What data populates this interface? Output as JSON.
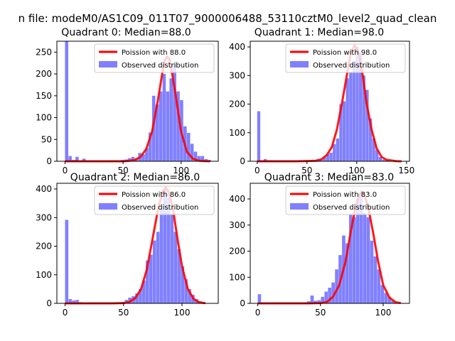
{
  "figure": {
    "suptitle": "n file: modeM0/AS1C09_011T07_9000006488_53110cztM0_level2_quad_clean"
  },
  "chart_data": [
    {
      "type": "bar",
      "title": "Quadrant 0: Median=88.0",
      "xlabel": "",
      "ylabel": "",
      "xlim": [
        -7,
        132
      ],
      "ylim": [
        0,
        275
      ],
      "xticks": [
        0,
        50,
        100
      ],
      "yticks": [
        0,
        50,
        100,
        150,
        200,
        250
      ],
      "legend": {
        "position": "top-right",
        "entries": [
          "Poission with 88.0",
          "Observed distribution"
        ]
      },
      "series": [
        {
          "name": "Observed distribution",
          "kind": "histogram",
          "color": "#8080ff",
          "bin_width": 3.0,
          "bin_starts": [
            0,
            3,
            6,
            9,
            12,
            15,
            18,
            21,
            24,
            27,
            30,
            33,
            36,
            39,
            42,
            45,
            48,
            51,
            54,
            57,
            60,
            63,
            66,
            69,
            72,
            75,
            78,
            81,
            84,
            87,
            90,
            93,
            96,
            99,
            102,
            105,
            108,
            111,
            114,
            117,
            120,
            123
          ],
          "values": [
            275,
            12,
            3,
            10,
            2,
            6,
            0,
            0,
            0,
            0,
            0,
            0,
            1,
            2,
            1,
            1,
            3,
            4,
            7,
            10,
            7,
            19,
            16,
            30,
            66,
            150,
            130,
            160,
            200,
            160,
            190,
            225,
            160,
            140,
            80,
            65,
            40,
            22,
            12,
            12,
            5,
            3
          ]
        },
        {
          "name": "Poission with 88.0",
          "kind": "line",
          "color": "#ff0000",
          "x": [
            0,
            10,
            20,
            30,
            40,
            50,
            55,
            60,
            65,
            70,
            75,
            80,
            84,
            86,
            88,
            90,
            92,
            96,
            100,
            105,
            110,
            115,
            120,
            125
          ],
          "y": [
            0,
            0,
            0,
            0,
            0,
            0,
            1,
            3,
            10,
            28,
            68,
            140,
            205,
            232,
            240,
            232,
            205,
            140,
            68,
            22,
            6,
            1.5,
            0.3,
            0
          ]
        }
      ]
    },
    {
      "type": "bar",
      "title": "Quadrant 1: Median=98.0",
      "xlabel": "",
      "ylabel": "",
      "xlim": [
        -7,
        153
      ],
      "ylim": [
        0,
        420
      ],
      "xticks": [
        0,
        50,
        100,
        150
      ],
      "yticks": [
        0,
        100,
        200,
        300,
        400
      ],
      "legend": {
        "position": "top-right",
        "entries": [
          "Poission with 98.0",
          "Observed distribution"
        ]
      },
      "series": [
        {
          "name": "Observed distribution",
          "kind": "histogram",
          "color": "#8080ff",
          "bin_width": 3.3,
          "bin_starts": [
            0,
            3.3,
            6.6,
            9.9,
            13.2,
            16.5,
            19.8,
            23.1,
            26.4,
            29.7,
            33,
            36.3,
            39.6,
            42.9,
            46.2,
            49.5,
            52.8,
            56.1,
            59.4,
            62.7,
            66,
            69.3,
            72.6,
            75.9,
            79.2,
            82.5,
            85.8,
            89.1,
            92.4,
            95.7,
            99,
            102.3,
            105.6,
            108.9,
            112.2,
            115.5,
            118.8,
            122.1,
            125.4,
            128.7,
            132,
            135.3,
            138.6
          ],
          "values": [
            175,
            3,
            8,
            3,
            2,
            1,
            1,
            0,
            0,
            0,
            0,
            0,
            0,
            0,
            0,
            1,
            2,
            5,
            8,
            5,
            15,
            25,
            30,
            60,
            80,
            200,
            210,
            290,
            310,
            350,
            400,
            380,
            300,
            250,
            150,
            80,
            40,
            15,
            6,
            3,
            2,
            1,
            0
          ]
        },
        {
          "name": "Poission with 98.0",
          "kind": "line",
          "color": "#ff0000",
          "x": [
            0,
            20,
            40,
            60,
            65,
            70,
            75,
            80,
            85,
            90,
            94,
            98,
            102,
            106,
            110,
            115,
            120,
            125,
            130,
            140,
            145
          ],
          "y": [
            0,
            0,
            0,
            2,
            8,
            22,
            50,
            110,
            200,
            300,
            380,
            405,
            380,
            300,
            200,
            110,
            45,
            15,
            5,
            0.3,
            0
          ]
        }
      ]
    },
    {
      "type": "bar",
      "title": "Quadrant 2: Median=86.0",
      "xlabel": "",
      "ylabel": "",
      "xlim": [
        -7,
        131
      ],
      "ylim": [
        0,
        420
      ],
      "xticks": [
        0,
        50,
        100
      ],
      "yticks": [
        0,
        100,
        200,
        300,
        400
      ],
      "legend": {
        "position": "top-right",
        "entries": [
          "Poission with 86.0",
          "Observed distribution"
        ]
      },
      "series": [
        {
          "name": "Observed distribution",
          "kind": "histogram",
          "color": "#8080ff",
          "bin_width": 3.0,
          "bin_starts": [
            0,
            3,
            6,
            9,
            12,
            15,
            18,
            21,
            24,
            27,
            30,
            33,
            36,
            39,
            42,
            45,
            48,
            51,
            54,
            57,
            60,
            63,
            66,
            69,
            72,
            75,
            78,
            81,
            84,
            87,
            90,
            93,
            96,
            99,
            102,
            105,
            108,
            111,
            114,
            117,
            120
          ],
          "values": [
            292,
            15,
            10,
            12,
            4,
            1,
            0,
            0,
            0,
            0,
            1,
            0,
            0,
            1,
            2,
            3,
            5,
            12,
            20,
            25,
            35,
            50,
            80,
            150,
            170,
            220,
            250,
            330,
            400,
            370,
            310,
            250,
            190,
            130,
            85,
            50,
            30,
            15,
            8,
            3,
            1
          ]
        },
        {
          "name": "Poission with 86.0",
          "kind": "line",
          "color": "#ff0000",
          "x": [
            0,
            20,
            40,
            50,
            55,
            60,
            65,
            70,
            75,
            80,
            84,
            86,
            88,
            92,
            96,
            100,
            105,
            110,
            115,
            120
          ],
          "y": [
            0,
            0,
            0,
            1,
            5,
            18,
            50,
            120,
            230,
            340,
            395,
            405,
            395,
            340,
            230,
            130,
            50,
            15,
            3,
            0.5
          ]
        }
      ]
    },
    {
      "type": "bar",
      "title": "Quadrant 3: Median=83.0",
      "xlabel": "",
      "ylabel": "",
      "xlim": [
        -6,
        121
      ],
      "ylim": [
        0,
        460
      ],
      "xticks": [
        0,
        50,
        100
      ],
      "yticks": [
        0,
        100,
        200,
        300,
        400
      ],
      "legend": {
        "position": "top-right",
        "entries": [
          "Poission with 83.0",
          "Observed distribution"
        ]
      },
      "series": [
        {
          "name": "Observed distribution",
          "kind": "histogram",
          "color": "#8080ff",
          "bin_width": 2.8,
          "bin_starts": [
            0,
            2.8,
            5.6,
            8.4,
            11.2,
            14,
            16.8,
            19.6,
            22.4,
            25.2,
            28,
            30.8,
            33.6,
            36.4,
            39.2,
            42,
            44.8,
            47.6,
            50.4,
            53.2,
            56,
            58.8,
            61.6,
            64.4,
            67.2,
            70,
            72.8,
            75.6,
            78.4,
            81.2,
            84,
            86.8,
            89.6,
            92.4,
            95.2,
            98,
            100.8,
            103.6,
            106.4,
            109.2,
            112
          ],
          "values": [
            35,
            3,
            1,
            1,
            0,
            0,
            0,
            0,
            0,
            0,
            0,
            1,
            2,
            4,
            8,
            30,
            10,
            12,
            25,
            45,
            60,
            80,
            130,
            185,
            260,
            230,
            340,
            330,
            400,
            420,
            345,
            330,
            240,
            180,
            130,
            70,
            40,
            25,
            10,
            4,
            2
          ]
        },
        {
          "name": "Poission with 83.0",
          "kind": "line",
          "color": "#ff0000",
          "x": [
            0,
            20,
            40,
            50,
            55,
            60,
            65,
            70,
            74,
            78,
            81,
            83,
            85,
            88,
            92,
            96,
            100,
            105,
            110,
            114
          ],
          "y": [
            0,
            0,
            0,
            1,
            5,
            25,
            70,
            160,
            270,
            370,
            415,
            430,
            415,
            370,
            270,
            160,
            70,
            22,
            4,
            1
          ]
        }
      ]
    }
  ]
}
